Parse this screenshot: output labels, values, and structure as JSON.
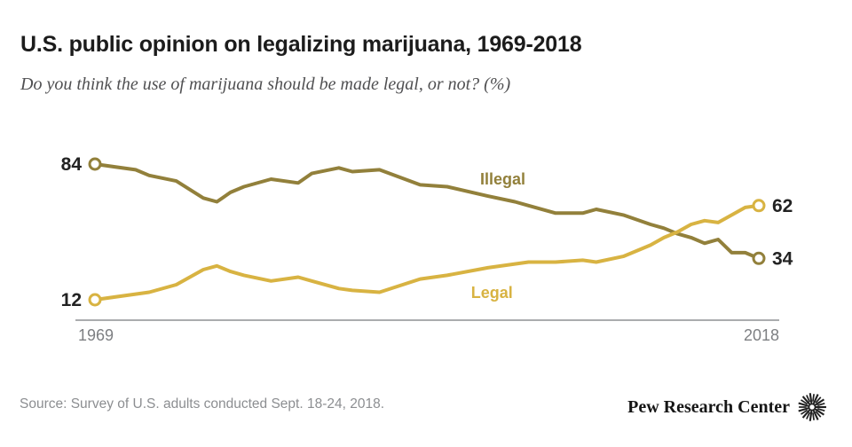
{
  "header": {
    "title": "U.S. public opinion on legalizing marijuana, 1969-2018",
    "subtitle": "Do you think the use of marijuana should be made legal, or not? (%)"
  },
  "chart_data": {
    "type": "line",
    "title": "U.S. public opinion on legalizing marijuana, 1969-2018",
    "question": "Do you think the use of marijuana should be made legal, or not? (%)",
    "xlabel": "",
    "ylabel": "",
    "grid": false,
    "y_axis_shown": false,
    "legend_position": "inline-labels",
    "x_range": [
      1969,
      2018
    ],
    "x_tick_labels": [
      "1969",
      "2018"
    ],
    "x": [
      1969,
      1972,
      1973,
      1975,
      1977,
      1978,
      1979,
      1980,
      1982,
      1984,
      1985,
      1987,
      1988,
      1990,
      1993,
      1995,
      1998,
      2000,
      2001,
      2003,
      2005,
      2006,
      2008,
      2010,
      2011,
      2012,
      2013,
      2014,
      2015,
      2016,
      2017,
      2018
    ],
    "series": [
      {
        "name": "Illegal",
        "color": "#92803b",
        "values": [
          84,
          81,
          78,
          75,
          66,
          64,
          69,
          72,
          76,
          74,
          79,
          82,
          80,
          81,
          73,
          72,
          67,
          64,
          62,
          58,
          58,
          60,
          57,
          52,
          50,
          47,
          45,
          42,
          44,
          37,
          37,
          34
        ],
        "label_pos": {
          "year": 1999.1,
          "value": 76
        }
      },
      {
        "name": "Legal",
        "color": "#d8b342",
        "values": [
          12,
          15,
          16,
          20,
          28,
          30,
          27,
          25,
          22,
          24,
          22,
          18,
          17,
          16,
          23,
          25,
          29,
          31,
          32,
          32,
          33,
          32,
          35,
          41,
          45,
          48,
          52,
          54,
          53,
          57,
          61,
          62
        ],
        "label_pos": {
          "year": 1998.3,
          "value": 15.8
        }
      }
    ]
  },
  "footer": {
    "source": "Source: Survey of U.S. adults conducted Sept. 18-24, 2018.",
    "brand": "Pew Research Center"
  },
  "colors": {
    "axis_line": "#aaacae",
    "tick_label": "#7d7f82",
    "title": "#1c1c1c",
    "subtitle": "#505052",
    "source": "#8c8e91",
    "value_label": "#222222",
    "illegal": "#92803b",
    "legal": "#d8b342"
  }
}
